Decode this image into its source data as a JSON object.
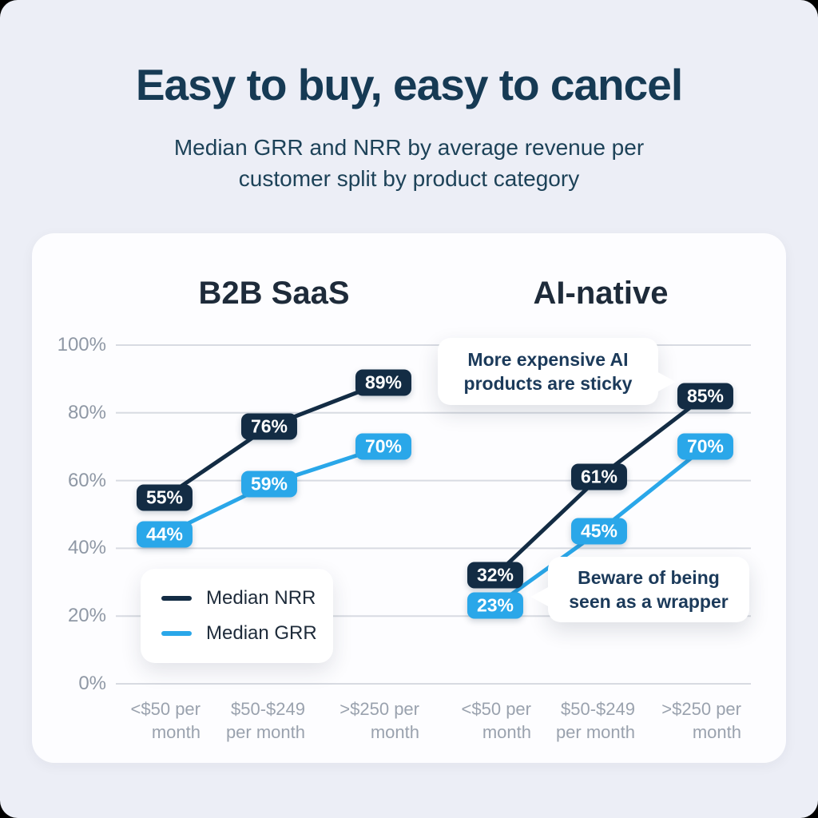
{
  "header": {
    "title": "Easy to buy, easy to cancel",
    "subtitle_lines": [
      "Median GRR and NRR by average revenue per",
      "customer split by product category"
    ]
  },
  "chart_data": {
    "type": "line",
    "groups": [
      {
        "label": "B2B SaaS",
        "categories": [
          [
            "<$50 per",
            "month"
          ],
          [
            "$50-$249",
            "per month"
          ],
          [
            ">$250 per",
            "month"
          ]
        ]
      },
      {
        "label": "AI-native",
        "categories": [
          [
            "<$50 per",
            "month"
          ],
          [
            "$50-$249",
            "per month"
          ],
          [
            ">$250 per",
            "month"
          ]
        ]
      }
    ],
    "series": [
      {
        "name": "Median NRR",
        "color": "#132C44",
        "values_by_group": [
          [
            55,
            76,
            89
          ],
          [
            32,
            61,
            85
          ]
        ]
      },
      {
        "name": "Median GRR",
        "color": "#2AA7E9",
        "values_by_group": [
          [
            44,
            59,
            70
          ],
          [
            23,
            45,
            70
          ]
        ]
      }
    ],
    "y_axis": {
      "ticks": [
        {
          "label": "100%",
          "value": 100
        },
        {
          "label": "80%",
          "value": 80
        },
        {
          "label": "60%",
          "value": 60
        },
        {
          "label": "40%",
          "value": 40
        },
        {
          "label": "20%",
          "value": 20
        },
        {
          "label": "0%",
          "value": 0
        }
      ],
      "range": [
        0,
        100
      ]
    },
    "value_suffix": "%",
    "grid": true,
    "legend_position": "inside-bottom-left",
    "annotations": [
      {
        "lines": [
          "More expensive AI",
          "products are sticky"
        ],
        "target_series": "Median NRR",
        "target_group": "AI-native",
        "target_value": 85
      },
      {
        "lines": [
          "Beware of being",
          "seen as a wrapper"
        ],
        "target_series": "Median GRR",
        "target_group": "AI-native",
        "target_value": 23
      }
    ]
  },
  "colors": {
    "background": "#ECEEF6",
    "card": "#FDFDFF",
    "title_text": "#163A54",
    "subtitle_text": "#1D4258",
    "group_title_text": "#1E2B3A",
    "axis_text": "#8F98A5",
    "axis_text_x": "#9AA2AE",
    "gridline": "#D8DBE2",
    "nrr_line": "#132C44",
    "grr_line": "#2AA7E9",
    "callout_text": "#1B3A5A"
  }
}
